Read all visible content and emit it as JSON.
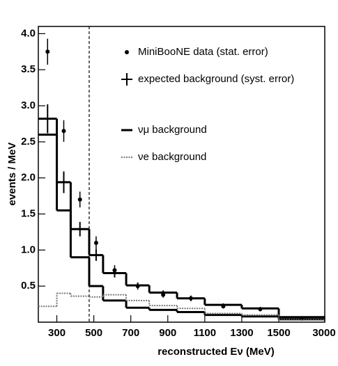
{
  "chart_data": {
    "type": "histogram",
    "x_label": "reconstructed Eν (MeV)",
    "y_label": "events / MeV",
    "bins": [
      200,
      300,
      375,
      475,
      550,
      675,
      800,
      950,
      1100,
      1300,
      1500,
      3000
    ],
    "series": [
      {
        "name": "MiniBooNE data (stat. error)",
        "style": "points",
        "color": "#000000",
        "values": [
          3.75,
          2.65,
          1.7,
          1.1,
          0.72,
          0.5,
          0.38,
          0.33,
          0.22,
          0.18,
          0.05
        ],
        "errors": [
          0.18,
          0.15,
          0.11,
          0.09,
          0.07,
          0.05,
          0.04,
          0.04,
          0.03,
          0.03,
          0.02
        ]
      },
      {
        "name": "expected background (syst. error)",
        "style": "cross-step",
        "color": "#000000",
        "values": [
          2.82,
          1.94,
          1.29,
          0.93,
          0.68,
          0.51,
          0.41,
          0.33,
          0.24,
          0.19,
          0.07
        ],
        "errors": [
          0.2,
          0.15,
          0.1,
          0.08,
          0.06,
          0.04,
          0.03,
          0.03,
          0.02,
          0.02,
          0.01
        ]
      },
      {
        "name": "νμ background",
        "style": "step",
        "color": "#000000",
        "values": [
          2.6,
          1.55,
          0.9,
          0.5,
          0.3,
          0.2,
          0.17,
          0.14,
          0.1,
          0.08,
          0.04
        ]
      },
      {
        "name": "νe background",
        "style": "dotted-step",
        "color": "#777777",
        "values": [
          0.22,
          0.4,
          0.36,
          0.35,
          0.38,
          0.3,
          0.23,
          0.19,
          0.12,
          0.1,
          0.03
        ]
      }
    ],
    "vline_x": 475,
    "xlim": [
      200,
      3000
    ],
    "xticks": [
      300,
      500,
      700,
      900,
      1100,
      1300,
      1500,
      3000
    ],
    "ylim": [
      0,
      4.1
    ],
    "yticks": [
      0.5,
      {
        "value": 1,
        "label": "1.0"
      },
      1.5,
      {
        "value": 2,
        "label": "2.0"
      },
      2.5,
      {
        "value": 3,
        "label": "3.0"
      },
      3.5,
      {
        "value": 4,
        "label": "4.0"
      }
    ]
  }
}
